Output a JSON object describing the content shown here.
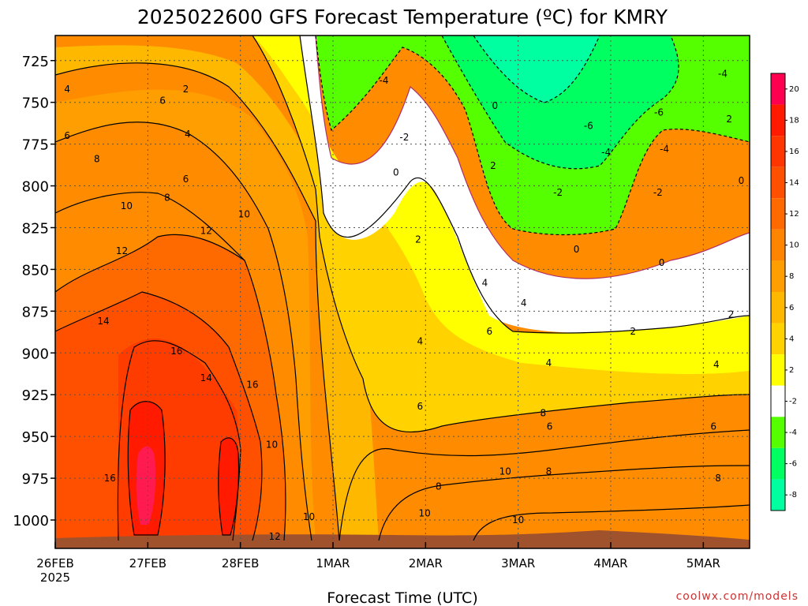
{
  "chart_data": {
    "type": "heatmap",
    "title": "2025022600 GFS Forecast Temperature (ºC) for KMRY",
    "xlabel": "Forecast Time (UTC)",
    "ylabel": "",
    "x_ticks": [
      "26FEB",
      "27FEB",
      "28FEB",
      "1MAR",
      "2MAR",
      "3MAR",
      "4MAR",
      "5MAR"
    ],
    "x_tick_year": "2025",
    "y_ticks": [
      725,
      750,
      775,
      800,
      825,
      850,
      875,
      900,
      925,
      950,
      975,
      1000
    ],
    "x_range_days": [
      0,
      7.5
    ],
    "y_range_hpa": [
      710,
      1017
    ],
    "y_reversed": true,
    "grid": true,
    "colorbar": {
      "labels": [
        "20",
        "18",
        "16",
        "14",
        "12",
        "10",
        "8",
        "6",
        "4",
        "2",
        "-2",
        "-4",
        "-6",
        "-8"
      ],
      "colors": [
        "#ff0050",
        "#ff1a00",
        "#ff3600",
        "#ff5000",
        "#ff6a00",
        "#ff8400",
        "#ff9e00",
        "#ffb800",
        "#ffd200",
        "#ffff00",
        "#ffffff",
        "#55ff00",
        "#00ff60",
        "#00ffa0"
      ]
    },
    "contour_labels": [
      {
        "text": "2",
        "x": 1.41,
        "y": 742
      },
      {
        "text": "4",
        "x": 0.13,
        "y": 742
      },
      {
        "text": "6",
        "x": 0.13,
        "y": 770
      },
      {
        "text": "6",
        "x": 1.16,
        "y": 749
      },
      {
        "text": "4",
        "x": 1.43,
        "y": 769
      },
      {
        "text": "8",
        "x": 0.45,
        "y": 784
      },
      {
        "text": "6",
        "x": 1.41,
        "y": 796
      },
      {
        "text": "10",
        "x": 0.77,
        "y": 812
      },
      {
        "text": "8",
        "x": 1.21,
        "y": 807
      },
      {
        "text": "10",
        "x": 2.04,
        "y": 817
      },
      {
        "text": "12",
        "x": 1.63,
        "y": 827
      },
      {
        "text": "12",
        "x": 0.72,
        "y": 839
      },
      {
        "text": "14",
        "x": 0.52,
        "y": 881
      },
      {
        "text": "16",
        "x": 1.31,
        "y": 899
      },
      {
        "text": "14",
        "x": 1.63,
        "y": 915
      },
      {
        "text": "16",
        "x": 2.13,
        "y": 919
      },
      {
        "text": "16",
        "x": 0.59,
        "y": 975
      },
      {
        "text": "10",
        "x": 2.34,
        "y": 955
      },
      {
        "text": "10",
        "x": 2.74,
        "y": 998
      },
      {
        "text": "12",
        "x": 2.37,
        "y": 1010
      },
      {
        "text": "-4",
        "x": 3.55,
        "y": 737
      },
      {
        "text": "-2",
        "x": 3.77,
        "y": 771
      },
      {
        "text": "0",
        "x": 3.68,
        "y": 792
      },
      {
        "text": "0",
        "x": 4.75,
        "y": 752
      },
      {
        "text": "2",
        "x": 4.73,
        "y": 788
      },
      {
        "text": "2",
        "x": 3.92,
        "y": 832
      },
      {
        "text": "4",
        "x": 4.64,
        "y": 858
      },
      {
        "text": "4",
        "x": 3.94,
        "y": 893
      },
      {
        "text": "6",
        "x": 4.69,
        "y": 887
      },
      {
        "text": "4",
        "x": 5.06,
        "y": 870
      },
      {
        "text": "6",
        "x": 3.94,
        "y": 932
      },
      {
        "text": "8",
        "x": 5.27,
        "y": 936
      },
      {
        "text": "8",
        "x": 4.14,
        "y": 980
      },
      {
        "text": "10",
        "x": 4.86,
        "y": 971
      },
      {
        "text": "10",
        "x": 3.99,
        "y": 996
      },
      {
        "text": "-6",
        "x": 5.76,
        "y": 764
      },
      {
        "text": "-4",
        "x": 5.95,
        "y": 780
      },
      {
        "text": "-6",
        "x": 6.52,
        "y": 756
      },
      {
        "text": "-4",
        "x": 6.58,
        "y": 778
      },
      {
        "text": "-4",
        "x": 7.21,
        "y": 733
      },
      {
        "text": "2",
        "x": 7.28,
        "y": 760
      },
      {
        "text": "-2",
        "x": 5.43,
        "y": 804
      },
      {
        "text": "-2",
        "x": 6.51,
        "y": 804
      },
      {
        "text": "0",
        "x": 5.63,
        "y": 838
      },
      {
        "text": "0",
        "x": 6.55,
        "y": 846
      },
      {
        "text": "0",
        "x": 7.41,
        "y": 797
      },
      {
        "text": "2",
        "x": 7.3,
        "y": 877
      },
      {
        "text": "2",
        "x": 6.24,
        "y": 887
      },
      {
        "text": "4",
        "x": 5.33,
        "y": 906
      },
      {
        "text": "4",
        "x": 7.14,
        "y": 907
      },
      {
        "text": "6",
        "x": 5.34,
        "y": 944
      },
      {
        "text": "6",
        "x": 7.11,
        "y": 944
      },
      {
        "text": "8",
        "x": 5.33,
        "y": 971
      },
      {
        "text": "8",
        "x": 7.16,
        "y": 975
      },
      {
        "text": "10",
        "x": 5.0,
        "y": 1000
      }
    ]
  },
  "credit": "coolwx.com/models"
}
